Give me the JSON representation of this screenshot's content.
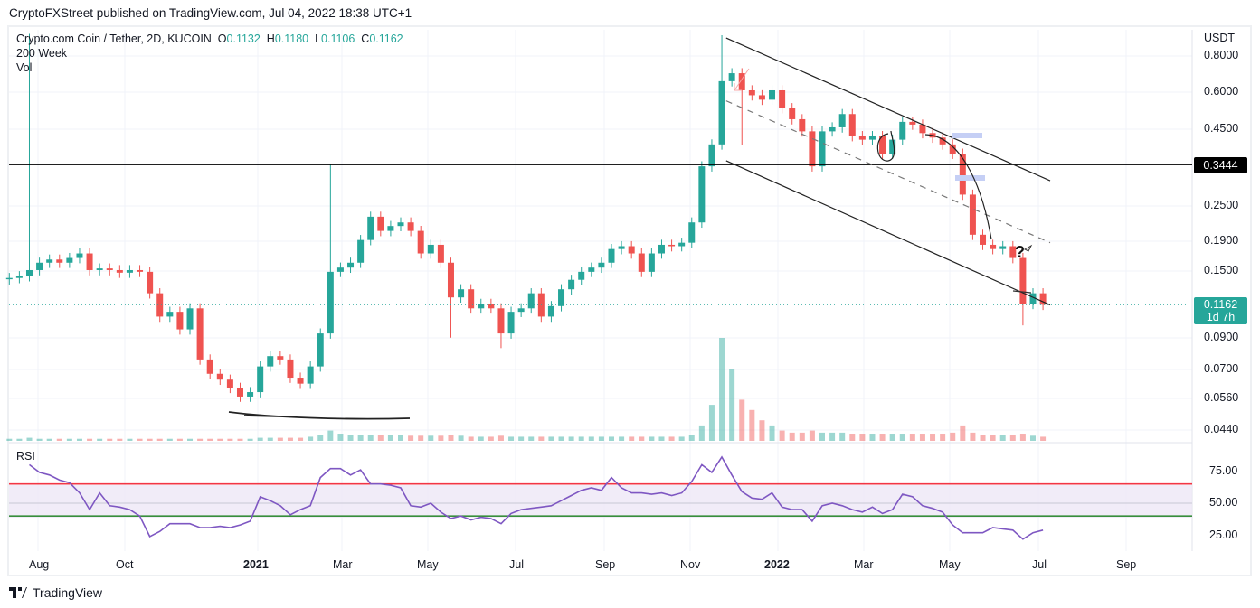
{
  "header": {
    "published": "CryptoFXStreet published on TradingView.com, Jul 04, 2022 18:38 UTC+1"
  },
  "legend": {
    "symbol": "Crypto.com Coin / Tether, 2D, KUCOIN",
    "o_label": "O",
    "o": "0.1132",
    "h_label": "H",
    "h": "0.1180",
    "l_label": "L",
    "l": "0.1106",
    "c_label": "C",
    "c": "0.1162",
    "indicator1": "200 Week",
    "indicator2": "Vol"
  },
  "price_axis": {
    "currency": "USDT",
    "level_label": "0.3444",
    "last_price": "0.1162",
    "countdown": "1d 7h"
  },
  "rsi": {
    "label": "RSI"
  },
  "footer": {
    "brand": "TradingView"
  },
  "colors": {
    "up": "#26a69a",
    "down": "#ef5350",
    "rsi_line": "#7e57c2",
    "overbought": "#f23645",
    "oversold": "#388e3c",
    "band_fill": "#ede7f6"
  },
  "chart_data": {
    "type": "candlestick",
    "scale": "log",
    "grid": true,
    "y_ticks": [
      "0.8000",
      "0.6000",
      "0.4500",
      "0.2500",
      "0.1900",
      "0.1500",
      "0.0900",
      "0.0700",
      "0.0560",
      "0.0440"
    ],
    "x_ticks": [
      "Aug",
      "Oct",
      "2021",
      "Mar",
      "May",
      "Jul",
      "Sep",
      "Nov",
      "2022",
      "Mar",
      "May",
      "Jul",
      "Sep"
    ],
    "rsi_ticks": [
      "75.00",
      "50.00",
      "25.00"
    ],
    "rsi_levels": {
      "upper": 65,
      "middle": 50,
      "lower": 40
    },
    "horizontal_level": 0.3444,
    "channel": {
      "upper": [
        [
          "2021-11-24",
          0.92
        ],
        [
          "2022-07-08",
          0.304
        ]
      ],
      "middle": [
        [
          "2021-11-24",
          0.565
        ],
        [
          "2022-07-08",
          0.188
        ]
      ],
      "lower": [
        [
          "2021-11-24",
          0.355
        ],
        [
          "2022-07-08",
          0.116
        ]
      ]
    },
    "annotation_text": "?",
    "dates": [
      "2020-07-12",
      "2020-07-19",
      "2020-07-26",
      "2020-08-02",
      "2020-08-09",
      "2020-08-16",
      "2020-08-23",
      "2020-08-30",
      "2020-09-06",
      "2020-09-13",
      "2020-09-20",
      "2020-09-27",
      "2020-10-04",
      "2020-10-11",
      "2020-10-18",
      "2020-10-25",
      "2020-11-01",
      "2020-11-08",
      "2020-11-15",
      "2020-11-22",
      "2020-11-29",
      "2020-12-06",
      "2020-12-13",
      "2020-12-20",
      "2020-12-27",
      "2021-01-03",
      "2021-01-10",
      "2021-01-17",
      "2021-01-24",
      "2021-01-31",
      "2021-02-07",
      "2021-02-14",
      "2021-02-21",
      "2021-02-28",
      "2021-03-07",
      "2021-03-14",
      "2021-03-21",
      "2021-03-28",
      "2021-04-04",
      "2021-04-11",
      "2021-04-18",
      "2021-04-25",
      "2021-05-02",
      "2021-05-09",
      "2021-05-16",
      "2021-05-23",
      "2021-05-30",
      "2021-06-06",
      "2021-06-13",
      "2021-06-20",
      "2021-06-27",
      "2021-07-04",
      "2021-07-11",
      "2021-07-18",
      "2021-07-25",
      "2021-08-01",
      "2021-08-08",
      "2021-08-15",
      "2021-08-22",
      "2021-08-29",
      "2021-09-05",
      "2021-09-12",
      "2021-09-19",
      "2021-09-26",
      "2021-10-03",
      "2021-10-10",
      "2021-10-17",
      "2021-10-24",
      "2021-10-31",
      "2021-11-07",
      "2021-11-14",
      "2021-11-21",
      "2021-11-28",
      "2021-12-05",
      "2021-12-12",
      "2021-12-19",
      "2021-12-26",
      "2022-01-02",
      "2022-01-09",
      "2022-01-16",
      "2022-01-23",
      "2022-01-30",
      "2022-02-06",
      "2022-02-13",
      "2022-02-20",
      "2022-02-27",
      "2022-03-06",
      "2022-03-13",
      "2022-03-20",
      "2022-03-27",
      "2022-04-03",
      "2022-04-10",
      "2022-04-17",
      "2022-04-24",
      "2022-05-01",
      "2022-05-08",
      "2022-05-15",
      "2022-05-22",
      "2022-05-29",
      "2022-06-05",
      "2022-06-12",
      "2022-06-19",
      "2022-06-26",
      "2022-07-03"
    ],
    "close": [
      0.143,
      0.145,
      0.152,
      0.161,
      0.165,
      0.161,
      0.167,
      0.173,
      0.152,
      0.154,
      0.152,
      0.149,
      0.152,
      0.15,
      0.127,
      0.106,
      0.11,
      0.096,
      0.113,
      0.076,
      0.068,
      0.065,
      0.061,
      0.057,
      0.059,
      0.072,
      0.078,
      0.076,
      0.066,
      0.063,
      0.072,
      0.093,
      0.15,
      0.155,
      0.161,
      0.192,
      0.23,
      0.206,
      0.214,
      0.22,
      0.206,
      0.173,
      0.185,
      0.161,
      0.123,
      0.131,
      0.113,
      0.117,
      0.113,
      0.093,
      0.11,
      0.113,
      0.127,
      0.106,
      0.115,
      0.131,
      0.141,
      0.15,
      0.155,
      0.161,
      0.179,
      0.183,
      0.173,
      0.15,
      0.173,
      0.185,
      0.183,
      0.188,
      0.22,
      0.34,
      0.403,
      0.658,
      0.7,
      0.613,
      0.59,
      0.57,
      0.613,
      0.534,
      0.49,
      0.446,
      0.34,
      0.446,
      0.46,
      0.51,
      0.43,
      0.418,
      0.43,
      0.375,
      0.418,
      0.48,
      0.47,
      0.44,
      0.425,
      0.403,
      0.375,
      0.273,
      0.2,
      0.185,
      0.179,
      0.183,
      0.167,
      0.117,
      0.127,
      0.1162
    ],
    "wick_extremes": {
      "2": {
        "high": 0.95
      },
      "32": {
        "high": 0.344
      },
      "44": {
        "low": 0.09
      },
      "49": {
        "low": 0.083
      },
      "71": {
        "high": 0.94
      },
      "73": {
        "low": 0.4
      },
      "101": {
        "low": 0.099
      }
    },
    "volume_relative": [
      2,
      2,
      3,
      2,
      2,
      2,
      2,
      2,
      2,
      2,
      2,
      2,
      2,
      2,
      2,
      2,
      2,
      2,
      2,
      2,
      2,
      2,
      2,
      2,
      2,
      3,
      3,
      3,
      3,
      3,
      4,
      6,
      10,
      7,
      6,
      6,
      6,
      6,
      6,
      6,
      5,
      5,
      5,
      5,
      6,
      5,
      4,
      4,
      4,
      5,
      4,
      4,
      4,
      4,
      4,
      4,
      4,
      4,
      4,
      4,
      4,
      4,
      4,
      4,
      4,
      4,
      4,
      4,
      6,
      15,
      35,
      100,
      70,
      40,
      30,
      20,
      15,
      10,
      8,
      8,
      10,
      8,
      8,
      8,
      7,
      7,
      7,
      7,
      7,
      7,
      7,
      7,
      7,
      7,
      8,
      15,
      8,
      6,
      6,
      6,
      6,
      7,
      5,
      4
    ],
    "rsi": [
      null,
      null,
      80,
      74,
      72,
      68,
      66,
      58,
      45,
      58,
      48,
      47,
      45,
      40,
      24,
      28,
      34,
      34,
      34,
      31,
      31,
      32,
      31,
      33,
      36,
      55,
      52,
      48,
      41,
      45,
      48,
      70,
      77,
      77,
      72,
      76,
      65,
      65,
      64,
      62,
      48,
      47,
      50,
      43,
      38,
      40,
      37,
      39,
      38,
      34,
      42,
      45,
      46,
      47,
      48,
      52,
      56,
      60,
      62,
      60,
      70,
      62,
      58,
      58,
      57,
      58,
      56,
      58,
      67,
      80,
      74,
      86,
      72,
      59,
      54,
      53,
      58,
      47,
      45,
      45,
      36,
      48,
      50,
      48,
      45,
      43,
      47,
      42,
      45,
      57,
      55,
      48,
      46,
      43,
      33,
      27,
      27,
      27,
      31,
      30,
      29,
      22,
      27,
      29
    ]
  }
}
